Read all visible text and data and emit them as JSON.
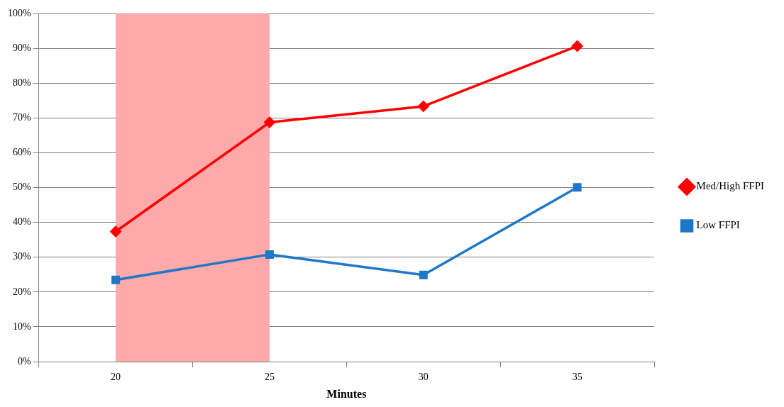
{
  "chart_data": {
    "type": "line",
    "xlabel": "Minutes",
    "categories": [
      "20",
      "25",
      "30",
      "35"
    ],
    "series": [
      {
        "name": "Med/High FFPI",
        "color": "#ff0000",
        "marker": "diamond",
        "values": [
          37.4,
          68.8,
          73.4,
          90.7
        ]
      },
      {
        "name": "Low FFPI",
        "color": "#1f77c8",
        "marker": "square",
        "values": [
          23.5,
          30.8,
          24.9,
          50.1
        ]
      }
    ],
    "ylim": [
      0,
      100
    ],
    "yticks": [
      {
        "value": 0,
        "label": "0%"
      },
      {
        "value": 10,
        "label": "10%"
      },
      {
        "value": 20,
        "label": "20%"
      },
      {
        "value": 30,
        "label": "30%"
      },
      {
        "value": 40,
        "label": "40%"
      },
      {
        "value": 50,
        "label": "50%"
      },
      {
        "value": 60,
        "label": "60%"
      },
      {
        "value": 70,
        "label": "70%"
      },
      {
        "value": 80,
        "label": "80%"
      },
      {
        "value": 90,
        "label": "90%"
      },
      {
        "value": 100,
        "label": "100%"
      }
    ],
    "bands": [
      {
        "axis": "x",
        "from": "20",
        "to": "25",
        "color": "#ffaaaa"
      }
    ],
    "grid": "y",
    "legend": "right"
  }
}
